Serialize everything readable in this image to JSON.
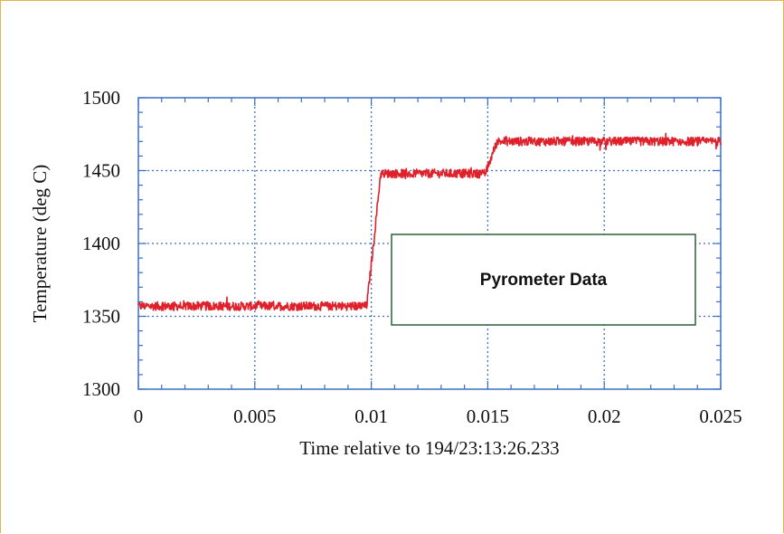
{
  "chart_data": {
    "type": "line",
    "xlabel": "Time relative to 194/23:13:26.233",
    "ylabel": "Temperature (deg C)",
    "xlim": [
      0,
      0.025
    ],
    "ylim": [
      1300,
      1500
    ],
    "x_ticks": [
      0,
      0.005,
      0.01,
      0.015,
      0.02,
      0.025
    ],
    "x_tick_labels": [
      "0",
      "0.005",
      "0.01",
      "0.015",
      "0.02",
      "0.025"
    ],
    "y_ticks": [
      1300,
      1350,
      1400,
      1450,
      1500
    ],
    "y_tick_labels": [
      "1300",
      "1350",
      "1400",
      "1450",
      "1500"
    ],
    "grid": true,
    "legend_placement": "center-right",
    "series": [
      {
        "name": "Pyrometer Data",
        "color": "#e0202a",
        "x": [
          0,
          0.0098,
          0.0101,
          0.0104,
          0.0149,
          0.0154,
          0.025
        ],
        "y": [
          1357,
          1357,
          1400,
          1448,
          1448,
          1470,
          1470
        ]
      }
    ],
    "colors": {
      "grid": "#3a6fc4",
      "axis": "#3a6fc4",
      "frame_border": "#e6b24a"
    }
  }
}
